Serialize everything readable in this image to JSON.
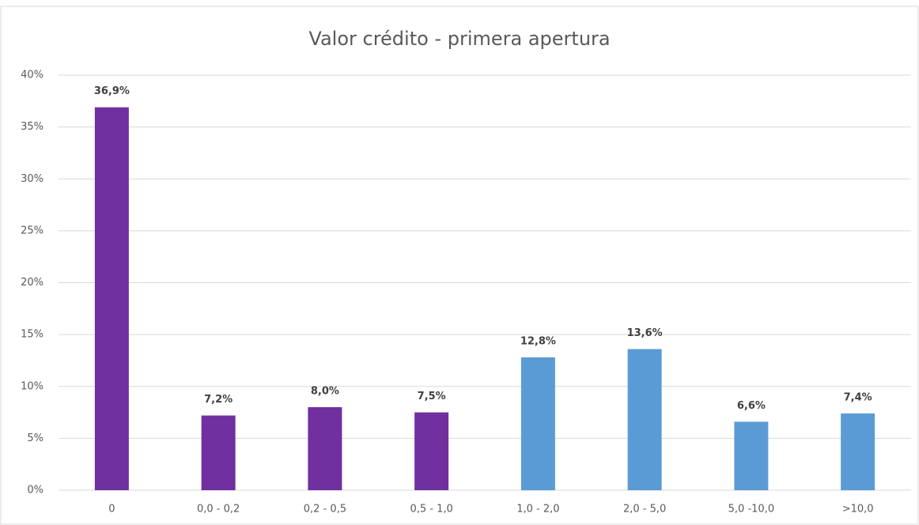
{
  "chart_data": {
    "type": "bar",
    "title": "Valor crédito - primera apertura",
    "categories": [
      "0",
      "0,0 - 0,2",
      "0,2 - 0,5",
      "0,5 - 1,0",
      "1,0 - 2,0",
      "2,0 - 5,0",
      "5,0 -10,0",
      ">10,0"
    ],
    "values": [
      36.9,
      7.2,
      8.0,
      7.5,
      12.8,
      13.6,
      6.6,
      7.4
    ],
    "value_labels": [
      "36,9%",
      "7,2%",
      "8,0%",
      "7,5%",
      "12,8%",
      "13,6%",
      "6,6%",
      "7,4%"
    ],
    "colors": [
      "#7030a0",
      "#7030a0",
      "#7030a0",
      "#7030a0",
      "#5b9bd5",
      "#5b9bd5",
      "#5b9bd5",
      "#5b9bd5"
    ],
    "ylim": [
      0,
      40
    ],
    "yticks": [
      {
        "value": 0,
        "label": "0%"
      },
      {
        "value": 5,
        "label": "5%"
      },
      {
        "value": 10,
        "label": "10%"
      },
      {
        "value": 15,
        "label": "15%"
      },
      {
        "value": 20,
        "label": "20%"
      },
      {
        "value": 25,
        "label": "25%"
      },
      {
        "value": 30,
        "label": "30%"
      },
      {
        "value": 35,
        "label": "35%"
      },
      {
        "value": 40,
        "label": "40%"
      }
    ],
    "grid": true
  }
}
